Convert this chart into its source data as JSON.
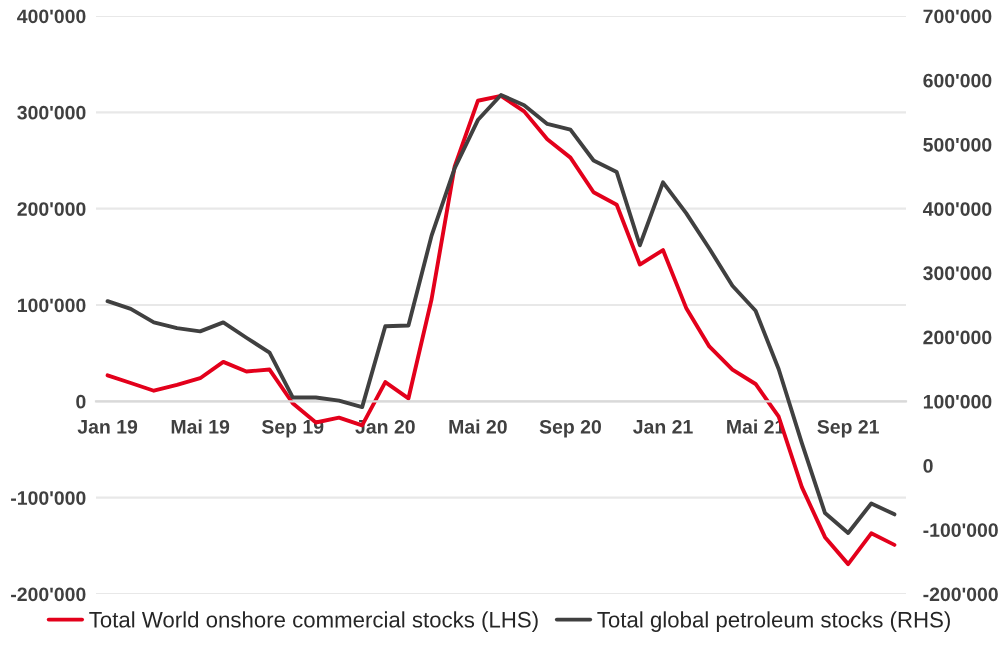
{
  "chart_data": {
    "type": "line",
    "categories": [
      "Jan 19",
      null,
      null,
      null,
      "Mai 19",
      null,
      null,
      null,
      "Sep 19",
      null,
      null,
      null,
      "Jan 20",
      null,
      null,
      null,
      "Mai 20",
      null,
      null,
      null,
      "Sep 20",
      null,
      null,
      null,
      "Jan 21",
      null,
      null,
      null,
      "Mai 21",
      null,
      null,
      null,
      "Sep 21",
      null,
      null
    ],
    "series": [
      {
        "name": "Total World onshore commercial stocks (LHS)",
        "color": "#e3001b",
        "values": [
          27000,
          19000,
          11000,
          17000,
          24000,
          41000,
          31000,
          33000,
          -2000,
          -22000,
          -17000,
          -25000,
          20000,
          3000,
          106000,
          244000,
          312000,
          317000,
          301000,
          272000,
          253000,
          217000,
          204000,
          142000,
          157000,
          97000,
          57000,
          33000,
          18000,
          -16000,
          -89000,
          -141000,
          -169000,
          -137000,
          -149000
        ]
      },
      {
        "name": "Total global petroleum stocks (RHS)",
        "color": "#404040",
        "axis": "y2",
        "values": [
          256000,
          244000,
          223000,
          214000,
          209000,
          223000,
          199000,
          176000,
          106000,
          106000,
          101000,
          91000,
          217000,
          218000,
          358000,
          463000,
          538000,
          577000,
          561000,
          532000,
          523000,
          475000,
          457000,
          343000,
          441000,
          393000,
          338000,
          280000,
          241000,
          150000,
          35000,
          -74000,
          -105000,
          -59000,
          -76000
        ]
      }
    ],
    "ylim": [
      -200000,
      400000
    ],
    "yticks": [
      {
        "value": -200000,
        "label": "-200'000"
      },
      {
        "value": -100000,
        "label": "-100'000"
      },
      {
        "value": 0,
        "label": "0"
      },
      {
        "value": 100000,
        "label": "100'000"
      },
      {
        "value": 200000,
        "label": "200'000"
      },
      {
        "value": 300000,
        "label": "300'000"
      },
      {
        "value": 400000,
        "label": "400'000"
      }
    ],
    "y2lim": [
      -200000,
      700000
    ],
    "y2ticks": [
      {
        "value": -200000,
        "label": "-200'000"
      },
      {
        "value": -100000,
        "label": "-100'000"
      },
      {
        "value": 0,
        "label": "0"
      },
      {
        "value": 100000,
        "label": "100'000"
      },
      {
        "value": 200000,
        "label": "200'000"
      },
      {
        "value": 300000,
        "label": "300'000"
      },
      {
        "value": 400000,
        "label": "400'000"
      },
      {
        "value": 500000,
        "label": "500'000"
      },
      {
        "value": 600000,
        "label": "600'000"
      },
      {
        "value": 700000,
        "label": "700'000"
      }
    ],
    "grid": "y",
    "legend": "bottom",
    "marker": "none",
    "line_style": "solid"
  }
}
